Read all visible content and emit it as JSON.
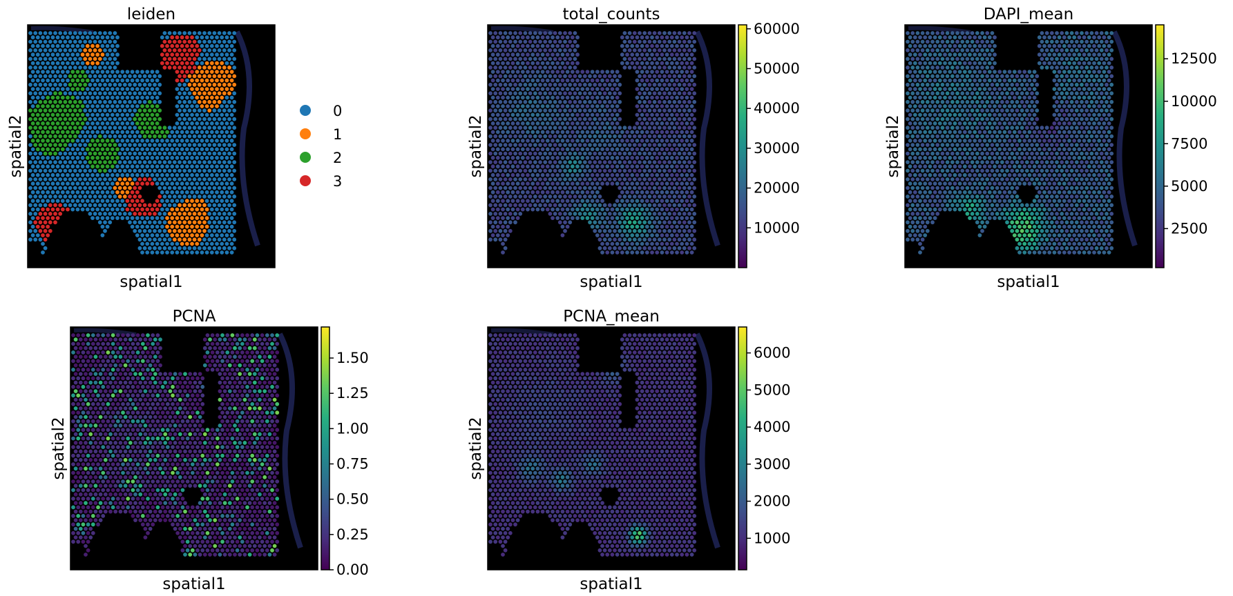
{
  "chart_data": [
    {
      "type": "scatter",
      "subtype": "spatial-categorical",
      "title": "leiden",
      "xlabel": "spatial1",
      "ylabel": "spatial2",
      "background": "#000000",
      "legend": {
        "placement": "right",
        "entries": [
          {
            "label": "0",
            "color": "#1f77b4"
          },
          {
            "label": "1",
            "color": "#ff7f0e"
          },
          {
            "label": "2",
            "color": "#2ca02c"
          },
          {
            "label": "3",
            "color": "#d62728"
          }
        ]
      }
    },
    {
      "type": "scatter",
      "subtype": "spatial-continuous",
      "title": "total_counts",
      "xlabel": "spatial1",
      "ylabel": "spatial2",
      "colormap": "viridis",
      "colorbar": {
        "min": 0,
        "max": 61000,
        "ticks": [
          10000,
          20000,
          30000,
          40000,
          50000,
          60000
        ],
        "tick_labels": [
          "10000",
          "20000",
          "30000",
          "40000",
          "50000",
          "60000"
        ]
      }
    },
    {
      "type": "scatter",
      "subtype": "spatial-continuous",
      "title": "DAPI_mean",
      "xlabel": "spatial1",
      "ylabel": "spatial2",
      "colormap": "viridis",
      "colorbar": {
        "min": 200,
        "max": 14500,
        "ticks": [
          2500,
          5000,
          7500,
          10000,
          12500
        ],
        "tick_labels": [
          "2500",
          "5000",
          "7500",
          "10000",
          "12500"
        ]
      }
    },
    {
      "type": "scatter",
      "subtype": "spatial-continuous",
      "title": "PCNA",
      "xlabel": "spatial1",
      "ylabel": "spatial2",
      "colormap": "viridis",
      "colorbar": {
        "min": 0,
        "max": 1.72,
        "ticks": [
          0,
          0.25,
          0.5,
          0.75,
          1.0,
          1.25,
          1.5
        ],
        "tick_labels": [
          "0.00",
          "0.25",
          "0.50",
          "0.75",
          "1.00",
          "1.25",
          "1.50"
        ]
      }
    },
    {
      "type": "scatter",
      "subtype": "spatial-continuous",
      "title": "PCNA_mean",
      "xlabel": "spatial1",
      "ylabel": "spatial2",
      "colormap": "viridis",
      "colorbar": {
        "min": 150,
        "max": 6700,
        "ticks": [
          1000,
          2000,
          3000,
          4000,
          5000,
          6000
        ],
        "tick_labels": [
          "1000",
          "2000",
          "3000",
          "4000",
          "5000",
          "6000"
        ]
      }
    }
  ]
}
